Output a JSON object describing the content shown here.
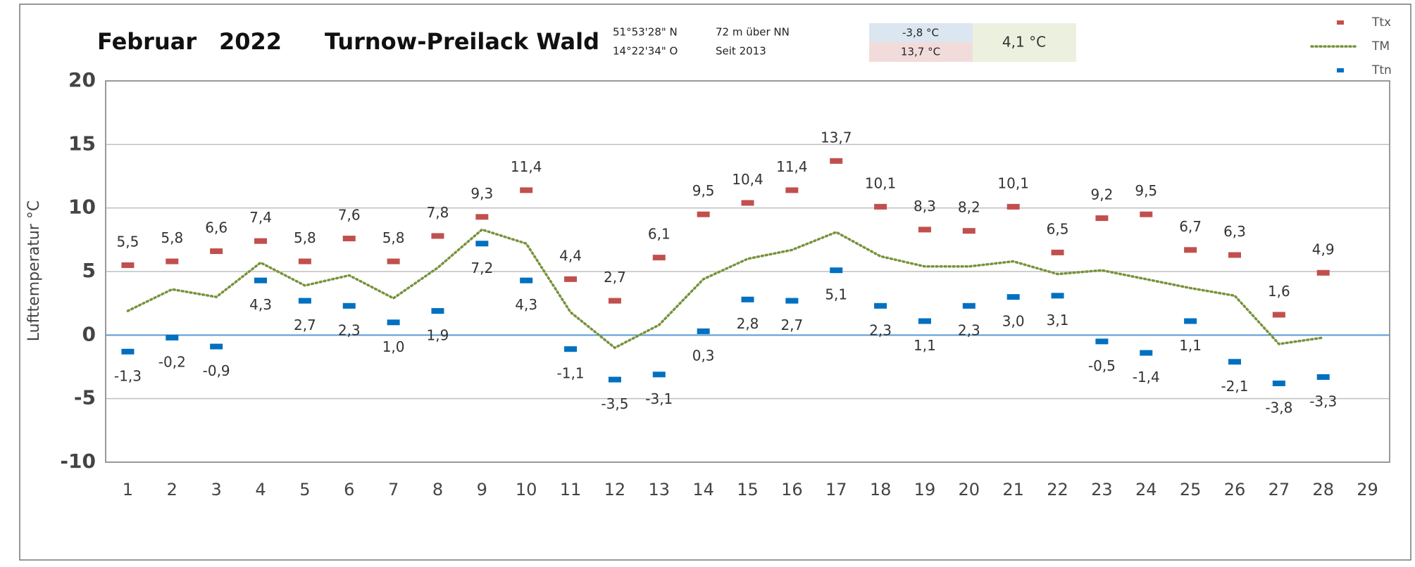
{
  "chart_data": {
    "type": "line",
    "title": "Februar",
    "year": "2022",
    "station": "Turnow-Preilack Wald",
    "latitude": "51°53'28\" N",
    "longitude": "14°22'34\" O",
    "elevation": "72 m über NN",
    "since": "Seit 2013",
    "min_label": "-3,8 °C",
    "max_label": "13,7 °C",
    "mean_label": "4,1 °C",
    "y_label": "Lufttemperatur °C",
    "categories": [
      "1",
      "2",
      "3",
      "4",
      "5",
      "6",
      "7",
      "8",
      "9",
      "10",
      "11",
      "12",
      "13",
      "14",
      "15",
      "16",
      "17",
      "18",
      "19",
      "20",
      "21",
      "22",
      "23",
      "24",
      "25",
      "26",
      "27",
      "28",
      "29"
    ],
    "ylim": [
      -10,
      20
    ],
    "yticks": [
      -10,
      -5,
      0,
      5,
      10,
      15,
      20
    ],
    "grid": true,
    "legend": "top-right",
    "series": [
      {
        "name": "Ttx",
        "color": "#c0504d",
        "marker": "dash",
        "label_position": "above",
        "values": [
          5.5,
          5.8,
          6.6,
          7.4,
          5.8,
          7.6,
          5.8,
          7.8,
          9.3,
          11.4,
          4.4,
          2.7,
          6.1,
          9.5,
          10.4,
          11.4,
          13.7,
          10.1,
          8.3,
          8.2,
          10.1,
          6.5,
          9.2,
          9.5,
          6.7,
          6.3,
          1.6,
          4.9,
          null
        ],
        "value_labels": [
          "5,5",
          "5,8",
          "6,6",
          "7,4",
          "5,8",
          "7,6",
          "5,8",
          "7,8",
          "9,3",
          "11,4",
          "4,4",
          "2,7",
          "6,1",
          "9,5",
          "10,4",
          "11,4",
          "13,7",
          "10,1",
          "8,3",
          "8,2",
          "10,1",
          "6,5",
          "9,2",
          "9,5",
          "6,7",
          "6,3",
          "1,6",
          "4,9",
          null
        ]
      },
      {
        "name": "TM",
        "color": "#77933c",
        "marker": "dotted-line",
        "values": [
          1.9,
          3.6,
          3.0,
          5.7,
          3.9,
          4.7,
          2.9,
          5.3,
          8.3,
          7.2,
          1.8,
          -1.0,
          0.8,
          4.4,
          6.0,
          6.7,
          8.1,
          6.2,
          5.4,
          5.4,
          5.8,
          4.8,
          5.1,
          4.4,
          3.7,
          3.1,
          -0.7,
          -0.2,
          null
        ]
      },
      {
        "name": "Ttn",
        "color": "#0070c0",
        "marker": "dash",
        "label_position": "below",
        "values": [
          -1.3,
          -0.2,
          -0.9,
          4.3,
          2.7,
          2.3,
          1.0,
          1.9,
          7.2,
          4.3,
          -1.1,
          -3.5,
          -3.1,
          0.3,
          2.8,
          2.7,
          5.1,
          2.3,
          1.1,
          2.3,
          3.0,
          3.1,
          -0.5,
          -1.4,
          1.1,
          -2.1,
          -3.8,
          -3.3,
          null
        ],
        "value_labels": [
          "-1,3",
          "-0,2",
          "-0,9",
          "4,3",
          "2,7",
          "2,3",
          "1,0",
          "1,9",
          "7,2",
          "4,3",
          "-1,1",
          "-3,5",
          "-3,1",
          "0,3",
          "2,8",
          "2,7",
          "5,1",
          "2,3",
          "1,1",
          "2,3",
          "3,0",
          "3,1",
          "-0,5",
          "-1,4",
          "1,1",
          "-2,1",
          "-3,8",
          "-3,3",
          null
        ]
      }
    ]
  }
}
